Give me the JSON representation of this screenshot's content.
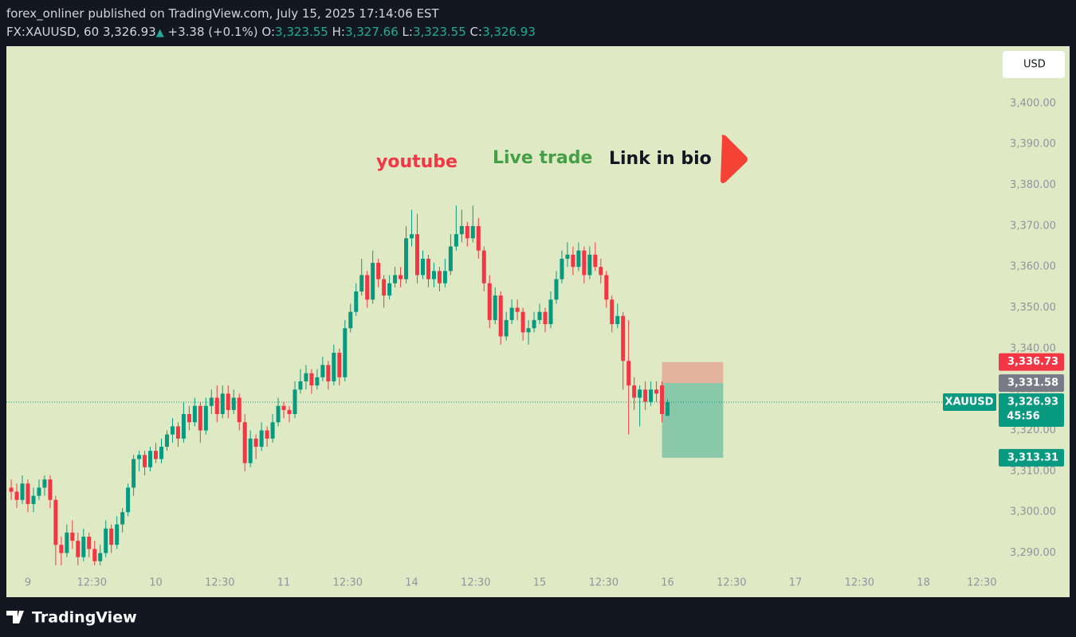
{
  "header": {
    "published": "forex_onliner published on TradingView.com, July 15, 2025 17:14:06 EST",
    "symbol": "FX:XAUUSD, 60",
    "last": "3,326.93",
    "change": "+3.38 (+0.1%)",
    "o_label": "O:",
    "open": "3,323.55",
    "h_label": "H:",
    "high": "3,327.66",
    "l_label": "L:",
    "low": "3,323.55",
    "c_label": "C:",
    "close": "3,326.93"
  },
  "brand": "TradingView",
  "chart_data": {
    "type": "candlestick",
    "currency": "USD",
    "annotations": [
      "youtube",
      "Live trade",
      "Link in bio"
    ],
    "up_color": "#089981",
    "down_color": "#f23645",
    "grid": false,
    "xlim": [
      -3.87,
      174.1
    ],
    "ylim": [
      3279.2,
      3414
    ],
    "xticks": [
      {
        "value": 0,
        "label": "9"
      },
      {
        "value": 11.5,
        "label": "12:30"
      },
      {
        "value": 23,
        "label": "10"
      },
      {
        "value": 34.5,
        "label": "12:30"
      },
      {
        "value": 46,
        "label": "11"
      },
      {
        "value": 57.5,
        "label": "12:30"
      },
      {
        "value": 69,
        "label": "14"
      },
      {
        "value": 80.5,
        "label": "12:30"
      },
      {
        "value": 92,
        "label": "15"
      },
      {
        "value": 103.5,
        "label": "12:30"
      },
      {
        "value": 115,
        "label": "16"
      },
      {
        "value": 126.5,
        "label": "12:30"
      },
      {
        "value": 138,
        "label": "17"
      },
      {
        "value": 149.5,
        "label": "12:30"
      },
      {
        "value": 161,
        "label": "18"
      },
      {
        "value": 171.5,
        "label": "12:30"
      }
    ],
    "yticks": [
      {
        "value": 3290,
        "label": "3,290.00"
      },
      {
        "value": 3300,
        "label": "3,300.00"
      },
      {
        "value": 3310,
        "label": "3,310.00"
      },
      {
        "value": 3320,
        "label": "3,320.00"
      },
      {
        "value": 3330,
        "label": "3,330.00"
      },
      {
        "value": 3340,
        "label": "3,340.00"
      },
      {
        "value": 3350,
        "label": "3,350.00"
      },
      {
        "value": 3360,
        "label": "3,360.00"
      },
      {
        "value": 3370,
        "label": "3,370.00"
      },
      {
        "value": 3380,
        "label": "3,380.00"
      },
      {
        "value": 3390,
        "label": "3,390.00"
      },
      {
        "value": 3400,
        "label": "3,400.00"
      }
    ],
    "x": [
      -3,
      -2,
      -1,
      0,
      1,
      2,
      3,
      4,
      5,
      6,
      7,
      8,
      9,
      10,
      11,
      12,
      13,
      14,
      15,
      16,
      17,
      18,
      19,
      20,
      21,
      22,
      23,
      24,
      25,
      26,
      27,
      28,
      29,
      30,
      31,
      32,
      33,
      34,
      35,
      36,
      37,
      38,
      39,
      40,
      41,
      42,
      43,
      44,
      45,
      46,
      47,
      48,
      49,
      50,
      51,
      52,
      53,
      54,
      55,
      56,
      57,
      58,
      59,
      60,
      61,
      62,
      63,
      64,
      65,
      66,
      67,
      68,
      69,
      70,
      71,
      72,
      73,
      74,
      75,
      76,
      77,
      78,
      79,
      80,
      81,
      82,
      83,
      84,
      85,
      86,
      87,
      88,
      89,
      90,
      91,
      92,
      93,
      94,
      95,
      96,
      97,
      98,
      99,
      100,
      101,
      102,
      103,
      104,
      105,
      106,
      107,
      108,
      109,
      110,
      111,
      112,
      113,
      114,
      115
    ],
    "ohlc": [
      [
        3306,
        3308,
        3303,
        3305
      ],
      [
        3305,
        3307,
        3301,
        3303
      ],
      [
        3303,
        3309,
        3302,
        3307
      ],
      [
        3307,
        3308,
        3300,
        3302
      ],
      [
        3302,
        3306,
        3300,
        3304
      ],
      [
        3304,
        3308,
        3303,
        3306
      ],
      [
        3306,
        3309,
        3304,
        3308
      ],
      [
        3308,
        3309,
        3301,
        3303
      ],
      [
        3303,
        3304,
        3287,
        3292
      ],
      [
        3292,
        3294,
        3287,
        3290
      ],
      [
        3290,
        3297,
        3289,
        3295
      ],
      [
        3295,
        3298,
        3291,
        3293
      ],
      [
        3293,
        3295,
        3287,
        3289
      ],
      [
        3289,
        3296,
        3288,
        3294
      ],
      [
        3294,
        3295,
        3289,
        3291
      ],
      [
        3291,
        3293,
        3287,
        3288
      ],
      [
        3288,
        3292,
        3287,
        3290
      ],
      [
        3290,
        3298,
        3289,
        3296
      ],
      [
        3296,
        3297,
        3290,
        3292
      ],
      [
        3292,
        3299,
        3291,
        3297
      ],
      [
        3297,
        3301,
        3295,
        3300
      ],
      [
        3300,
        3307,
        3299,
        3306
      ],
      [
        3306,
        3314,
        3304,
        3313
      ],
      [
        3313,
        3315,
        3310,
        3314
      ],
      [
        3314,
        3315,
        3309,
        3311
      ],
      [
        3311,
        3316,
        3310,
        3315
      ],
      [
        3315,
        3317,
        3312,
        3313
      ],
      [
        3313,
        3318,
        3312,
        3316
      ],
      [
        3316,
        3320,
        3315,
        3319
      ],
      [
        3319,
        3323,
        3317,
        3321
      ],
      [
        3321,
        3322,
        3316,
        3318
      ],
      [
        3318,
        3327,
        3317,
        3324
      ],
      [
        3324,
        3326,
        3320,
        3322
      ],
      [
        3322,
        3328,
        3321,
        3326
      ],
      [
        3326,
        3327,
        3317,
        3320
      ],
      [
        3320,
        3328,
        3319,
        3326
      ],
      [
        3326,
        3330,
        3324,
        3328
      ],
      [
        3328,
        3331,
        3322,
        3324
      ],
      [
        3324,
        3331,
        3323,
        3329
      ],
      [
        3329,
        3331,
        3323,
        3325
      ],
      [
        3325,
        3330,
        3324,
        3328
      ],
      [
        3328,
        3329,
        3320,
        3322
      ],
      [
        3322,
        3324,
        3310,
        3312
      ],
      [
        3312,
        3320,
        3311,
        3318
      ],
      [
        3318,
        3319,
        3313,
        3316
      ],
      [
        3316,
        3322,
        3315,
        3320
      ],
      [
        3320,
        3321,
        3316,
        3318
      ],
      [
        3318,
        3324,
        3317,
        3322
      ],
      [
        3322,
        3328,
        3321,
        3326
      ],
      [
        3326,
        3327,
        3323,
        3325
      ],
      [
        3325,
        3326,
        3322,
        3324
      ],
      [
        3324,
        3332,
        3323,
        3330
      ],
      [
        3330,
        3335,
        3329,
        3332
      ],
      [
        3332,
        3336,
        3330,
        3334
      ],
      [
        3334,
        3335,
        3329,
        3331
      ],
      [
        3331,
        3335,
        3330,
        3333
      ],
      [
        3333,
        3338,
        3332,
        3336
      ],
      [
        3336,
        3337,
        3330,
        3332
      ],
      [
        3332,
        3341,
        3331,
        3339
      ],
      [
        3339,
        3340,
        3331,
        3333
      ],
      [
        3333,
        3347,
        3332,
        3345
      ],
      [
        3345,
        3351,
        3344,
        3349
      ],
      [
        3349,
        3356,
        3348,
        3354
      ],
      [
        3354,
        3362,
        3353,
        3358
      ],
      [
        3358,
        3359,
        3350,
        3352
      ],
      [
        3352,
        3364,
        3351,
        3361
      ],
      [
        3361,
        3362,
        3355,
        3357
      ],
      [
        3357,
        3358,
        3350,
        3353
      ],
      [
        3353,
        3358,
        3352,
        3356
      ],
      [
        3356,
        3360,
        3355,
        3358
      ],
      [
        3358,
        3360,
        3355,
        3357
      ],
      [
        3357,
        3370,
        3356,
        3367
      ],
      [
        3367,
        3374,
        3365,
        3368
      ],
      [
        3368,
        3373,
        3356,
        3358
      ],
      [
        3358,
        3364,
        3357,
        3362
      ],
      [
        3362,
        3363,
        3355,
        3357
      ],
      [
        3357,
        3361,
        3355,
        3359
      ],
      [
        3359,
        3360,
        3354,
        3356
      ],
      [
        3356,
        3362,
        3355,
        3359
      ],
      [
        3359,
        3368,
        3358,
        3365
      ],
      [
        3365,
        3375,
        3364,
        3368
      ],
      [
        3368,
        3374,
        3366,
        3370
      ],
      [
        3370,
        3371,
        3365,
        3367
      ],
      [
        3367,
        3375,
        3366,
        3370
      ],
      [
        3370,
        3372,
        3362,
        3364
      ],
      [
        3364,
        3365,
        3354,
        3356
      ],
      [
        3356,
        3358,
        3345,
        3347
      ],
      [
        3347,
        3355,
        3346,
        3353
      ],
      [
        3353,
        3354,
        3341,
        3343
      ],
      [
        3343,
        3349,
        3342,
        3347
      ],
      [
        3347,
        3352,
        3346,
        3350
      ],
      [
        3350,
        3352,
        3347,
        3349
      ],
      [
        3349,
        3350,
        3342,
        3344
      ],
      [
        3344,
        3347,
        3341,
        3345
      ],
      [
        3345,
        3349,
        3344,
        3347
      ],
      [
        3347,
        3351,
        3346,
        3349
      ],
      [
        3349,
        3350,
        3344,
        3346
      ],
      [
        3346,
        3354,
        3345,
        3352
      ],
      [
        3352,
        3359,
        3351,
        3357
      ],
      [
        3357,
        3364,
        3356,
        3362
      ],
      [
        3362,
        3366,
        3360,
        3363
      ],
      [
        3363,
        3365,
        3358,
        3360
      ],
      [
        3360,
        3366,
        3359,
        3364
      ],
      [
        3364,
        3365,
        3356,
        3358
      ],
      [
        3358,
        3365,
        3357,
        3363
      ],
      [
        3363,
        3366,
        3359,
        3360
      ],
      [
        3360,
        3362,
        3356,
        3358
      ],
      [
        3358,
        3359,
        3350,
        3352
      ],
      [
        3352,
        3353,
        3344,
        3346
      ],
      [
        3346,
        3351,
        3345,
        3348
      ],
      [
        3348,
        3349,
        3330,
        3337
      ],
      [
        3337,
        3347,
        3319,
        3331
      ],
      [
        3331,
        3333,
        3325,
        3328
      ],
      [
        3328,
        3331,
        3321,
        3330
      ],
      [
        3330,
        3332,
        3325,
        3327
      ],
      [
        3327,
        3332,
        3326,
        3330
      ],
      [
        3330,
        3332,
        3327,
        3329
      ],
      [
        3331,
        3332,
        3322,
        3324
      ],
      [
        3323.55,
        3327.66,
        3323.55,
        3326.93
      ]
    ],
    "last_price": {
      "value": 3326.93,
      "label": "3,326.93"
    },
    "symbol": "XAUUSD",
    "countdown": "45:56",
    "position": {
      "x_range": [
        114,
        125
      ],
      "stop": {
        "value": 3336.73,
        "label": "3,336.73"
      },
      "entry": {
        "value": 3331.58,
        "label": "3,331.58"
      },
      "target": {
        "value": 3313.31,
        "label": "3,313.31"
      }
    }
  }
}
